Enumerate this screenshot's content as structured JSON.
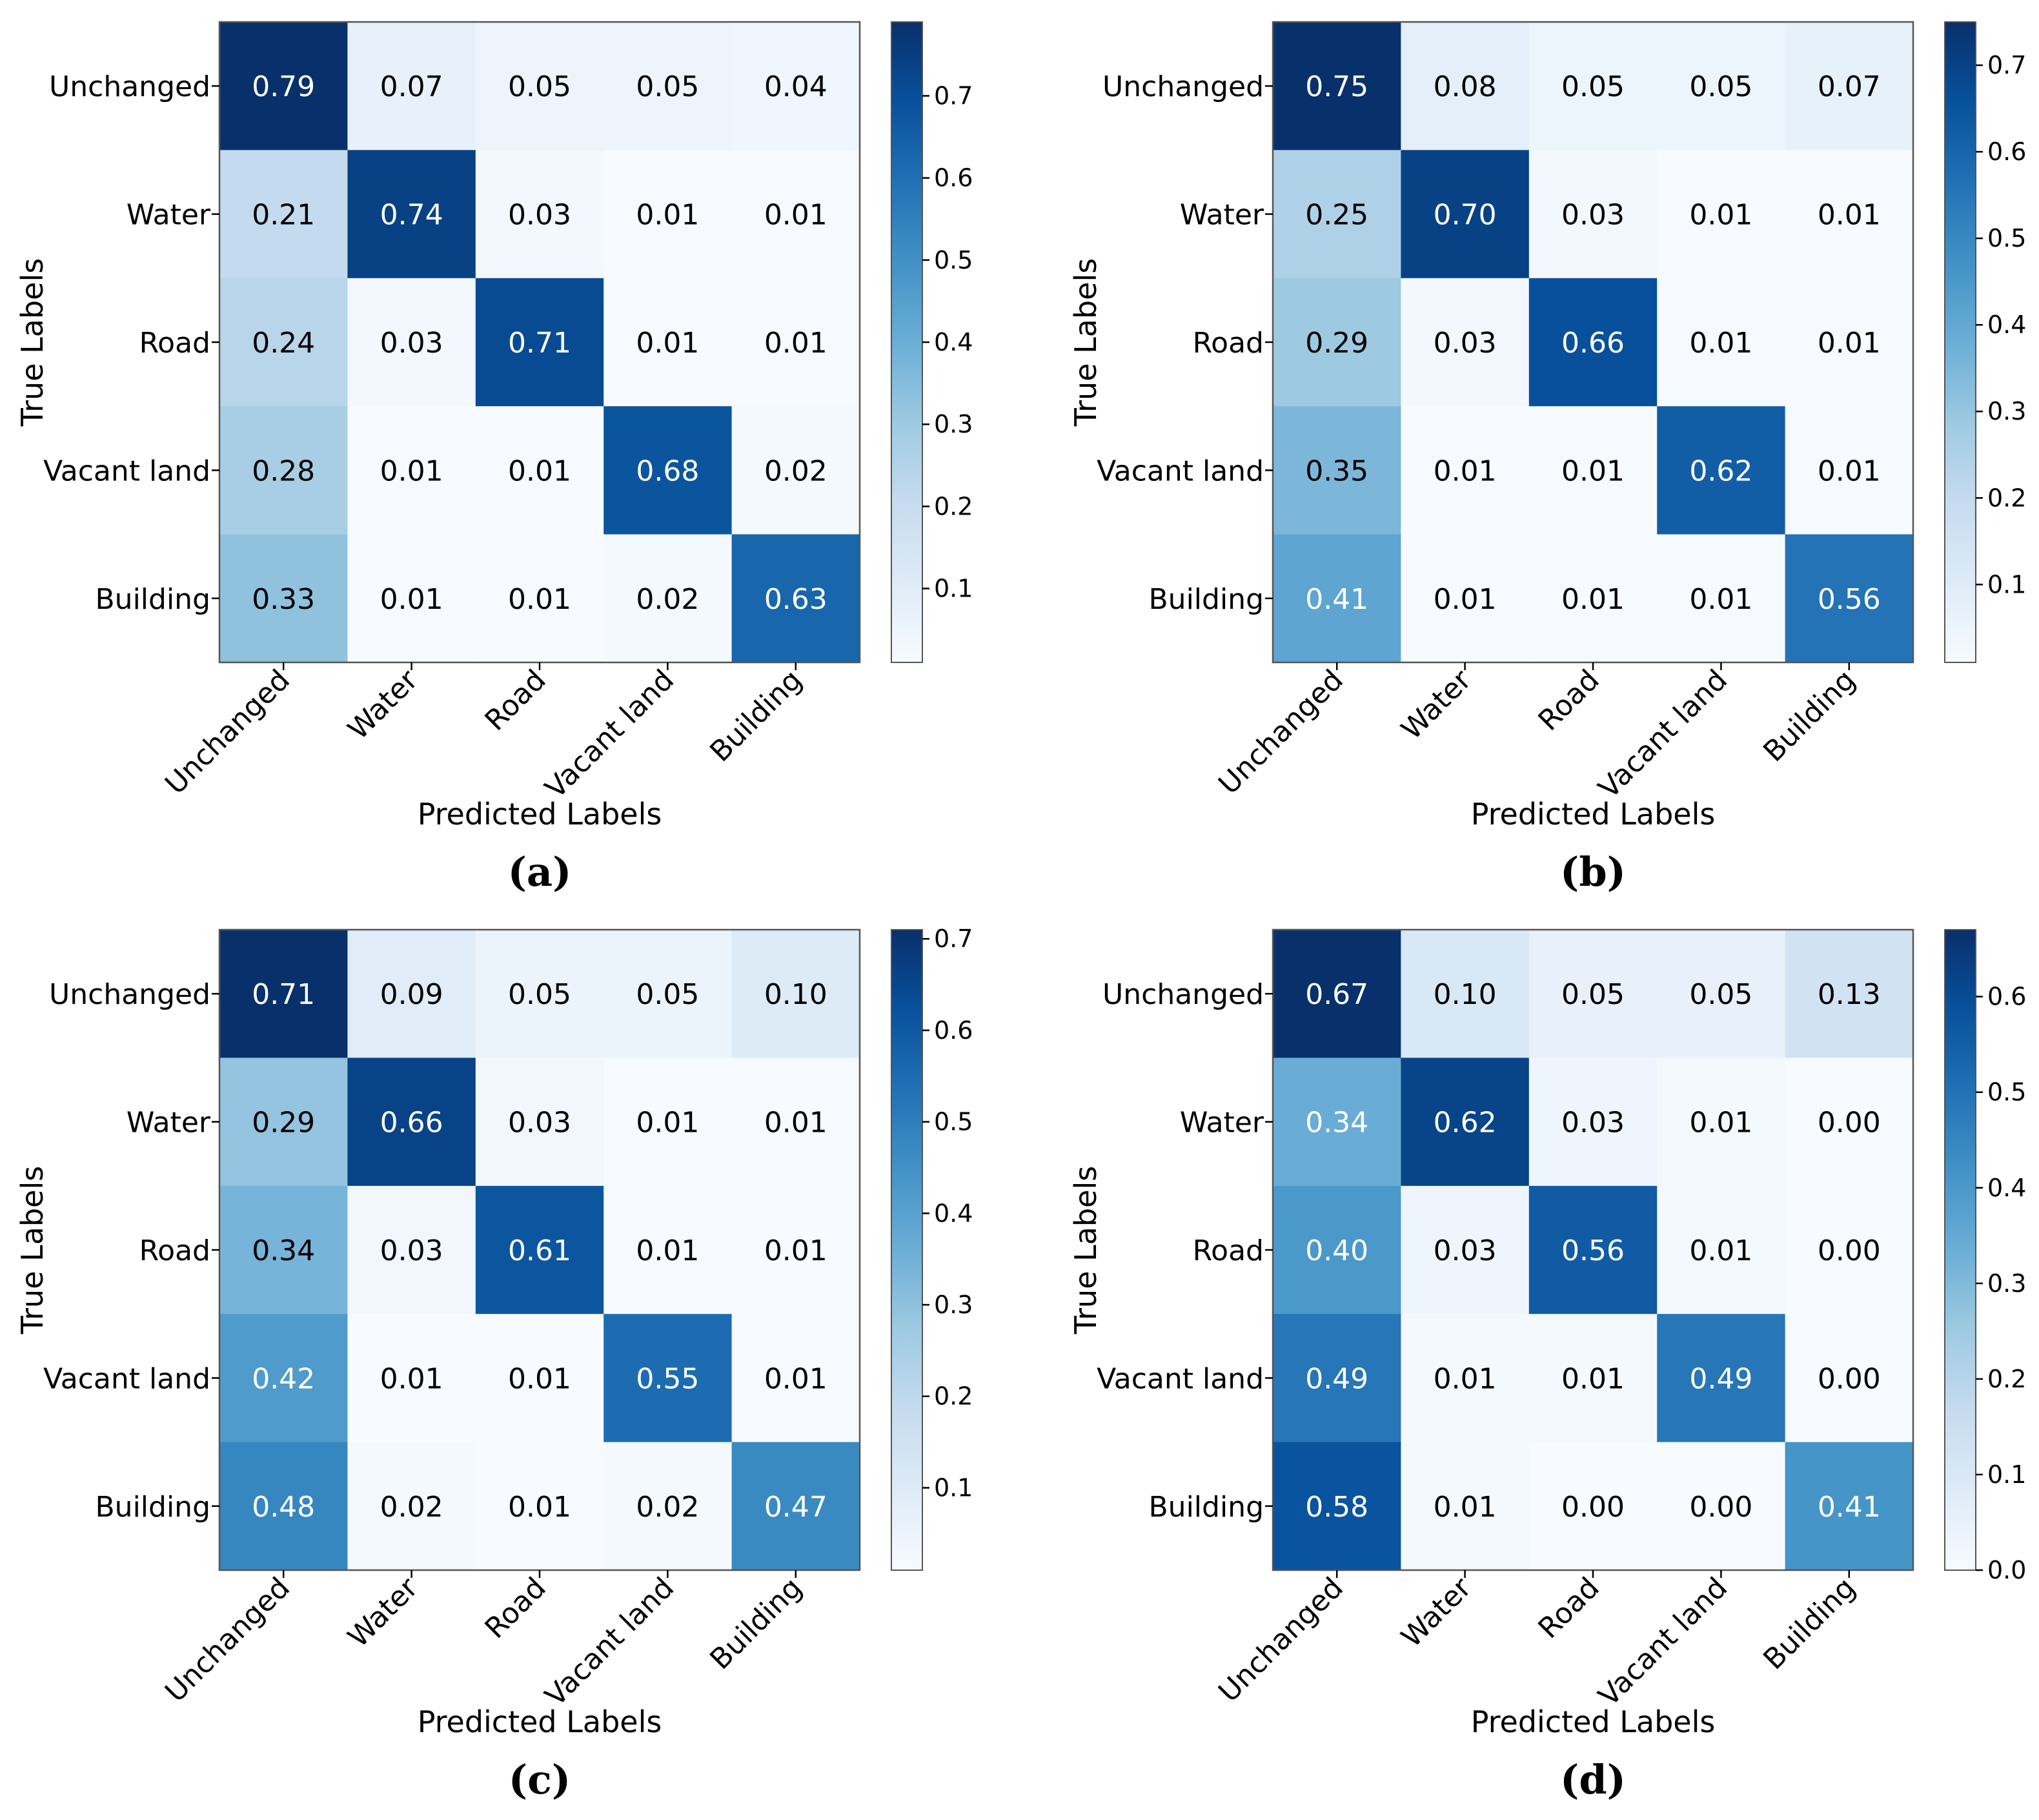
{
  "chart_data": [
    {
      "type": "heatmap",
      "caption": "(a)",
      "xlabel": "Predicted Labels",
      "ylabel": "True Labels",
      "row_labels": [
        "Unchanged",
        "Water",
        "Road",
        "Vacant land",
        "Building"
      ],
      "col_labels": [
        "Unchanged",
        "Water",
        "Road",
        "Vacant land",
        "Building"
      ],
      "values": [
        [
          0.79,
          0.07,
          0.05,
          0.05,
          0.04
        ],
        [
          0.21,
          0.74,
          0.03,
          0.01,
          0.01
        ],
        [
          0.24,
          0.03,
          0.71,
          0.01,
          0.01
        ],
        [
          0.28,
          0.01,
          0.01,
          0.68,
          0.02
        ],
        [
          0.33,
          0.01,
          0.01,
          0.02,
          0.63
        ]
      ],
      "vmin": 0.01,
      "vmax": 0.79,
      "colorbar_ticks": [
        0.1,
        0.2,
        0.3,
        0.4,
        0.5,
        0.6,
        0.7
      ],
      "colorbar_tick_labels": [
        "0.1",
        "0.2",
        "0.3",
        "0.4",
        "0.5",
        "0.6",
        "0.7"
      ],
      "colormap": "Blues"
    },
    {
      "type": "heatmap",
      "caption": "(b)",
      "xlabel": "Predicted Labels",
      "ylabel": "True Labels",
      "row_labels": [
        "Unchanged",
        "Water",
        "Road",
        "Vacant land",
        "Building"
      ],
      "col_labels": [
        "Unchanged",
        "Water",
        "Road",
        "Vacant land",
        "Building"
      ],
      "values": [
        [
          0.75,
          0.08,
          0.05,
          0.05,
          0.07
        ],
        [
          0.25,
          0.7,
          0.03,
          0.01,
          0.01
        ],
        [
          0.29,
          0.03,
          0.66,
          0.01,
          0.01
        ],
        [
          0.35,
          0.01,
          0.01,
          0.62,
          0.01
        ],
        [
          0.41,
          0.01,
          0.01,
          0.01,
          0.56
        ]
      ],
      "vmin": 0.01,
      "vmax": 0.75,
      "colorbar_ticks": [
        0.1,
        0.2,
        0.3,
        0.4,
        0.5,
        0.6,
        0.7
      ],
      "colorbar_tick_labels": [
        "0.1",
        "0.2",
        "0.3",
        "0.4",
        "0.5",
        "0.6",
        "0.7"
      ],
      "colormap": "Blues"
    },
    {
      "type": "heatmap",
      "caption": "(c)",
      "xlabel": "Predicted Labels",
      "ylabel": "True Labels",
      "row_labels": [
        "Unchanged",
        "Water",
        "Road",
        "Vacant land",
        "Building"
      ],
      "col_labels": [
        "Unchanged",
        "Water",
        "Road",
        "Vacant land",
        "Building"
      ],
      "values": [
        [
          0.71,
          0.09,
          0.05,
          0.05,
          0.1
        ],
        [
          0.29,
          0.66,
          0.03,
          0.01,
          0.01
        ],
        [
          0.34,
          0.03,
          0.61,
          0.01,
          0.01
        ],
        [
          0.42,
          0.01,
          0.01,
          0.55,
          0.01
        ],
        [
          0.48,
          0.02,
          0.01,
          0.02,
          0.47
        ]
      ],
      "vmin": 0.01,
      "vmax": 0.71,
      "colorbar_ticks": [
        0.1,
        0.2,
        0.3,
        0.4,
        0.5,
        0.6,
        0.7
      ],
      "colorbar_tick_labels": [
        "0.1",
        "0.2",
        "0.3",
        "0.4",
        "0.5",
        "0.6",
        "0.7"
      ],
      "colormap": "Blues"
    },
    {
      "type": "heatmap",
      "caption": "(d)",
      "xlabel": "Predicted Labels",
      "ylabel": "True Labels",
      "row_labels": [
        "Unchanged",
        "Water",
        "Road",
        "Vacant land",
        "Building"
      ],
      "col_labels": [
        "Unchanged",
        "Water",
        "Road",
        "Vacant land",
        "Building"
      ],
      "values": [
        [
          0.67,
          0.1,
          0.05,
          0.05,
          0.13
        ],
        [
          0.34,
          0.62,
          0.03,
          0.01,
          0.0
        ],
        [
          0.4,
          0.03,
          0.56,
          0.01,
          0.0
        ],
        [
          0.49,
          0.01,
          0.01,
          0.49,
          0.0
        ],
        [
          0.58,
          0.01,
          0.0,
          0.0,
          0.41
        ]
      ],
      "vmin": 0.0,
      "vmax": 0.67,
      "colorbar_ticks": [
        0.0,
        0.1,
        0.2,
        0.3,
        0.4,
        0.5,
        0.6
      ],
      "colorbar_tick_labels": [
        "0.0",
        "0.1",
        "0.2",
        "0.3",
        "0.4",
        "0.5",
        "0.6"
      ],
      "colormap": "Blues"
    }
  ]
}
